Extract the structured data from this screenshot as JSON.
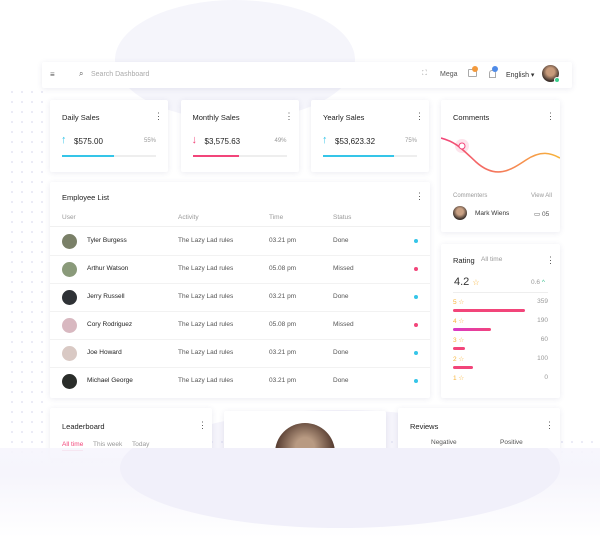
{
  "topbar": {
    "search_placeholder": "Search Dashboard",
    "menu": "Mega",
    "language": "English"
  },
  "stats": [
    {
      "title": "Daily Sales",
      "amount": "$575.00",
      "percent": {
        "value": 55,
        "label": "55%"
      },
      "color": "#35c5e8",
      "trend": "up"
    },
    {
      "title": "Monthly Sales",
      "amount": "$3,575.63",
      "percent": {
        "value": 49,
        "label": "49%"
      },
      "color": "#f2457a",
      "trend": "down"
    },
    {
      "title": "Yearly Sales",
      "amount": "$53,623.32",
      "percent": {
        "value": 75,
        "label": "75%"
      },
      "color": "#35c5e8",
      "trend": "up"
    }
  ],
  "employee_list": {
    "title": "Employee List",
    "headers": [
      "User",
      "Activity",
      "Time",
      "Status"
    ],
    "rows": [
      {
        "name": "Tyler Burgess",
        "activity": "The Lazy Lad rules",
        "time": "03.21 pm",
        "status": "Done",
        "dot": "#35c5e8",
        "avatar": "#7a8068"
      },
      {
        "name": "Arthur Watson",
        "activity": "The Lazy Lad rules",
        "time": "05.08 pm",
        "status": "Missed",
        "dot": "#f2457a",
        "avatar": "#8a9a7a"
      },
      {
        "name": "Jerry Russell",
        "activity": "The Lazy Lad rules",
        "time": "03.21 pm",
        "status": "Done",
        "dot": "#35c5e8",
        "avatar": "#2f3236"
      },
      {
        "name": "Cory Rodriguez",
        "activity": "The Lazy Lad rules",
        "time": "05.08 pm",
        "status": "Missed",
        "dot": "#f2457a",
        "avatar": "#d8b8c0"
      },
      {
        "name": "Joe Howard",
        "activity": "The Lazy Lad rules",
        "time": "03.21 pm",
        "status": "Done",
        "dot": "#35c5e8",
        "avatar": "#d9c9c4"
      },
      {
        "name": "Michael George",
        "activity": "The Lazy Lad rules",
        "time": "03.21 pm",
        "status": "Done",
        "dot": "#35c5e8",
        "avatar": "#2a2d2a"
      }
    ]
  },
  "comments": {
    "title": "Comments",
    "commenters": "Commenters",
    "view_all": "View All",
    "name": "Mark Wiens",
    "count": "05"
  },
  "rating": {
    "title": "Rating",
    "period": "All time",
    "score": "4.2",
    "change": "0.6",
    "rows": [
      {
        "stars": 5,
        "count": 359,
        "color": "#f2457a"
      },
      {
        "stars": 4,
        "count": 190,
        "color": "#d838c8"
      },
      {
        "stars": 3,
        "count": 60,
        "color": "#f2457a"
      },
      {
        "stars": 2,
        "count": 100,
        "color": "#f2457a"
      },
      {
        "stars": 1,
        "count": 0,
        "color": "#f2457a"
      }
    ]
  },
  "leaderboard": {
    "title": "Leaderboard",
    "tabs": [
      "All time",
      "This week",
      "Today"
    ]
  },
  "reviews": {
    "title": "Reviews",
    "negative": "Negative",
    "positive": "Positive"
  }
}
